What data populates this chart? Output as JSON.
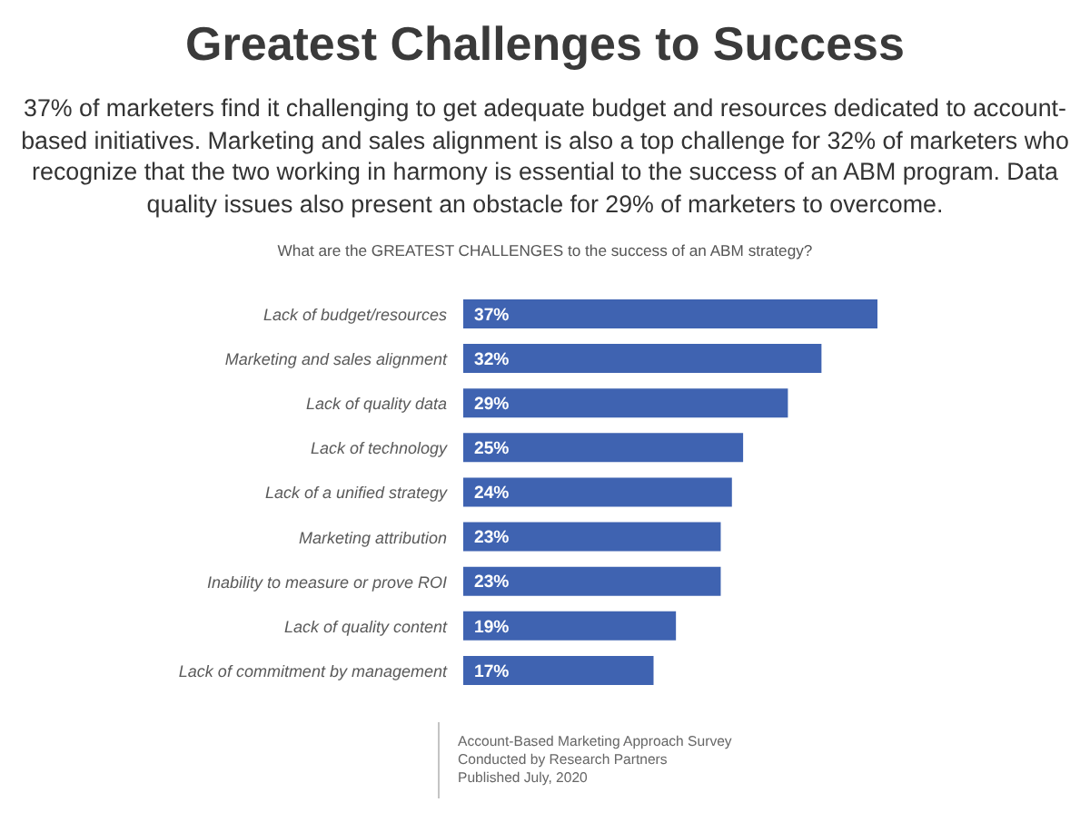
{
  "chart_data": {
    "type": "bar",
    "orientation": "horizontal",
    "title": "Greatest Challenges to Success",
    "subtitle": "37% of marketers find it challenging to get adequate budget and resources dedicated to account-based initiatives. Marketing and sales alignment is also a top challenge for 32% of marketers who recognize that the two working in harmony is essential to the success of an ABM program. Data quality issues also present an obstacle for 29% of marketers to overcome.",
    "annotations": [
      "What are the GREATEST CHALLENGES to the success of an ABM strategy?",
      "Account-Based Marketing Approach Survey",
      "Conducted by Research Partners",
      "Published July, 2020"
    ],
    "categories": [
      "Lack of budget/resources",
      "Marketing and sales alignment",
      "Lack of quality data",
      "Lack of technology",
      "Lack of a unified strategy",
      "Marketing attribution",
      "Inability to measure or prove ROI",
      "Lack of quality content",
      "Lack of commitment by management"
    ],
    "values": [
      37,
      32,
      29,
      25,
      24,
      23,
      23,
      19,
      17
    ],
    "value_labels": [
      "37%",
      "32%",
      "29%",
      "25%",
      "24%",
      "23%",
      "23%",
      "19%",
      "17%"
    ],
    "color": "#3f63b1"
  }
}
